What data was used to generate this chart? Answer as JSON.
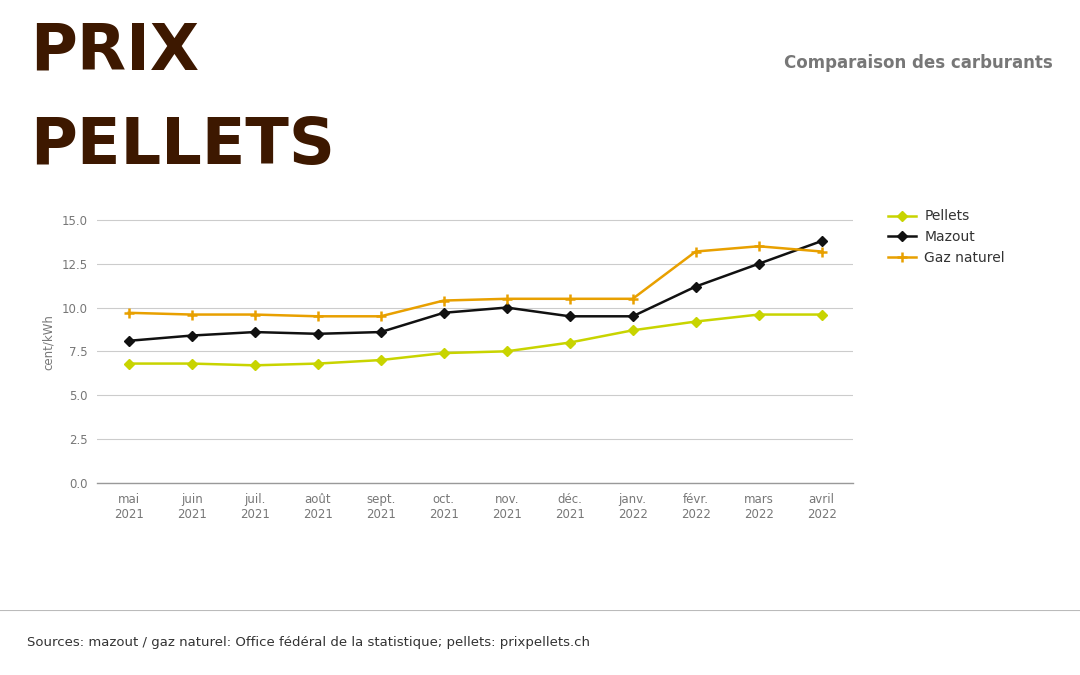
{
  "title_line1": "PRIX",
  "title_line2": "PELLETS",
  "title_color": "#3d1800",
  "subtitle": "Comparaison des carburants",
  "subtitle_color": "#777777",
  "categories": [
    "mai\n2021",
    "juin\n2021",
    "juil.\n2021",
    "août\n2021",
    "sept.\n2021",
    "oct.\n2021",
    "nov.\n2021",
    "déc.\n2021",
    "janv.\n2022",
    "févr.\n2022",
    "mars\n2022",
    "avril\n2022"
  ],
  "pellets": [
    6.8,
    6.8,
    6.7,
    6.8,
    7.0,
    7.4,
    7.5,
    8.0,
    8.7,
    9.2,
    9.6,
    9.6
  ],
  "mazout": [
    8.1,
    8.4,
    8.6,
    8.5,
    8.6,
    9.7,
    10.0,
    9.5,
    9.5,
    11.2,
    12.5,
    13.8
  ],
  "gaz_naturel": [
    9.7,
    9.6,
    9.6,
    9.5,
    9.5,
    10.4,
    10.5,
    10.5,
    10.5,
    13.2,
    13.5,
    13.2
  ],
  "pellets_color": "#c8d400",
  "mazout_color": "#111111",
  "gaz_naturel_color": "#e8a000",
  "ylabel": "cent/kWh",
  "ylim": [
    0,
    16
  ],
  "yticks": [
    0.0,
    2.5,
    5.0,
    7.5,
    10.0,
    12.5,
    15.0
  ],
  "bg_color": "#ffffff",
  "footer_text": "Sources: mazout / gaz naturel: Office fédéral de la statistique; pellets: prixpellets.ch",
  "footer_bg": "#e0e0dc",
  "grid_color": "#cccccc",
  "tick_color": "#777777",
  "spine_color": "#999999"
}
